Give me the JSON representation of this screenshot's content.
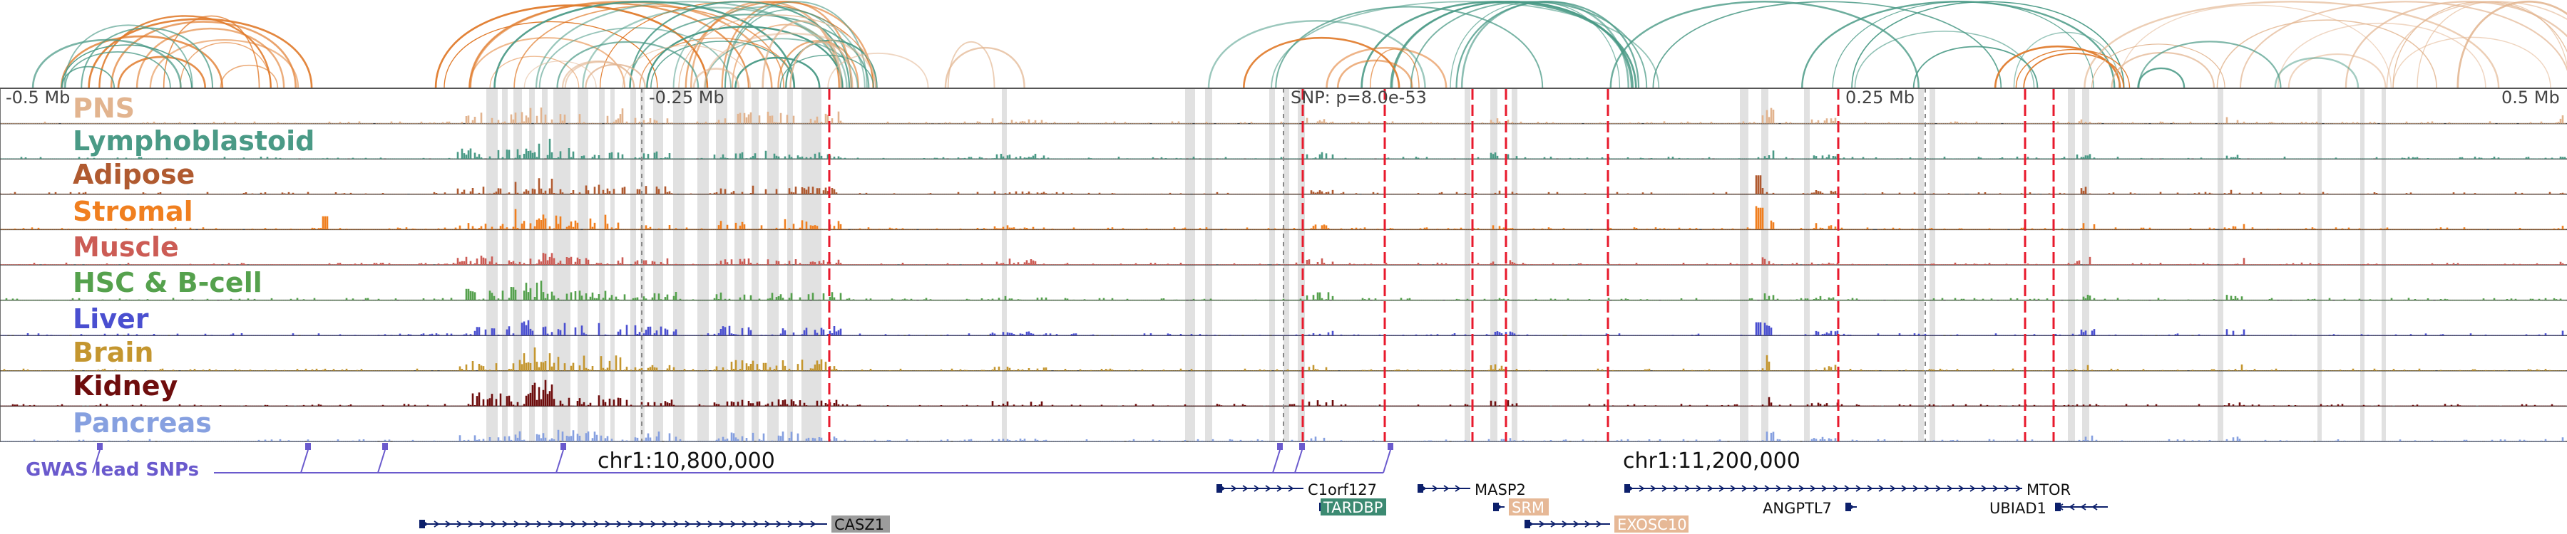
{
  "axis": {
    "ticks": [
      "-0.5 Mb",
      "-0.25 Mb",
      "0.25 Mb",
      "0.5 Mb"
    ],
    "snp_label": "SNP: p=8.0e-53"
  },
  "tracks": [
    {
      "label": "PNS",
      "color": "#e2b48f"
    },
    {
      "label": "Lymphoblastoid",
      "color": "#4a9a86"
    },
    {
      "label": "Adipose",
      "color": "#b05a30"
    },
    {
      "label": "Stromal",
      "color": "#f07f1f"
    },
    {
      "label": "Muscle",
      "color": "#cc5c55"
    },
    {
      "label": "HSC & B-cell",
      "color": "#55a14d"
    },
    {
      "label": "Liver",
      "color": "#4a4fd0"
    },
    {
      "label": "Brain",
      "color": "#c4962f"
    },
    {
      "label": "Kidney",
      "color": "#6e0d0d"
    },
    {
      "label": "Pancreas",
      "color": "#86a0e0"
    }
  ],
  "gwas": {
    "label": "GWAS lead SNPs",
    "color": "#6a5acd"
  },
  "coordinates": [
    "chr1:10,800,000",
    "chr1:11,200,000"
  ],
  "genes": [
    {
      "name": "C1orf127",
      "boxed": false,
      "box_color": "",
      "text_color": "#111111"
    },
    {
      "name": "MASP2",
      "boxed": false,
      "box_color": "",
      "text_color": "#111111"
    },
    {
      "name": "MTOR",
      "boxed": false,
      "box_color": "",
      "text_color": "#111111"
    },
    {
      "name": "TARDBP",
      "boxed": true,
      "box_color": "#3c8a72",
      "text_color": "#ffffff"
    },
    {
      "name": "SRM",
      "boxed": true,
      "box_color": "#e6b896",
      "text_color": "#ffffff"
    },
    {
      "name": "EXOSC10",
      "boxed": true,
      "box_color": "#e6b896",
      "text_color": "#ffffff"
    },
    {
      "name": "ANGPTL7",
      "boxed": false,
      "box_color": "",
      "text_color": "#111111"
    },
    {
      "name": "UBIAD1",
      "boxed": false,
      "box_color": "",
      "text_color": "#111111"
    },
    {
      "name": "CASZ1",
      "boxed": true,
      "box_color": "#9c9c9c",
      "text_color": "#111111"
    }
  ],
  "colors": {
    "snp_line": "#e8192c",
    "highlight": "#dcdcdc",
    "gene_strand": "#0c1f6b"
  }
}
